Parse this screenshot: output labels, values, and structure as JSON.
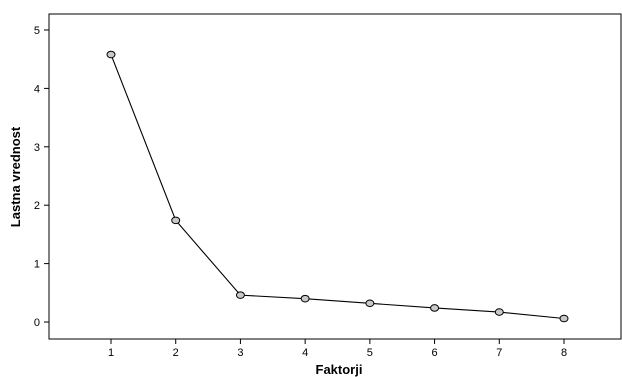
{
  "chart_data": {
    "type": "line",
    "title": "",
    "xlabel": "Faktorji",
    "ylabel": "Lastna vrednost",
    "x": [
      1,
      2,
      3,
      4,
      5,
      6,
      7,
      8
    ],
    "series": [
      {
        "values": [
          4.58,
          1.74,
          0.46,
          0.4,
          0.32,
          0.24,
          0.17,
          0.06
        ]
      }
    ],
    "xticks": [
      "1",
      "2",
      "3",
      "4",
      "5",
      "6",
      "7",
      "8"
    ],
    "yticks": [
      "0",
      "1",
      "2",
      "3",
      "4",
      "5"
    ],
    "ylim": [
      0,
      5
    ],
    "xlim": [
      1,
      8
    ],
    "grid": false,
    "legend": "none",
    "colors": {
      "line": "#000000",
      "marker_fill": "#c8c8c8",
      "marker_stroke": "#000000"
    }
  }
}
